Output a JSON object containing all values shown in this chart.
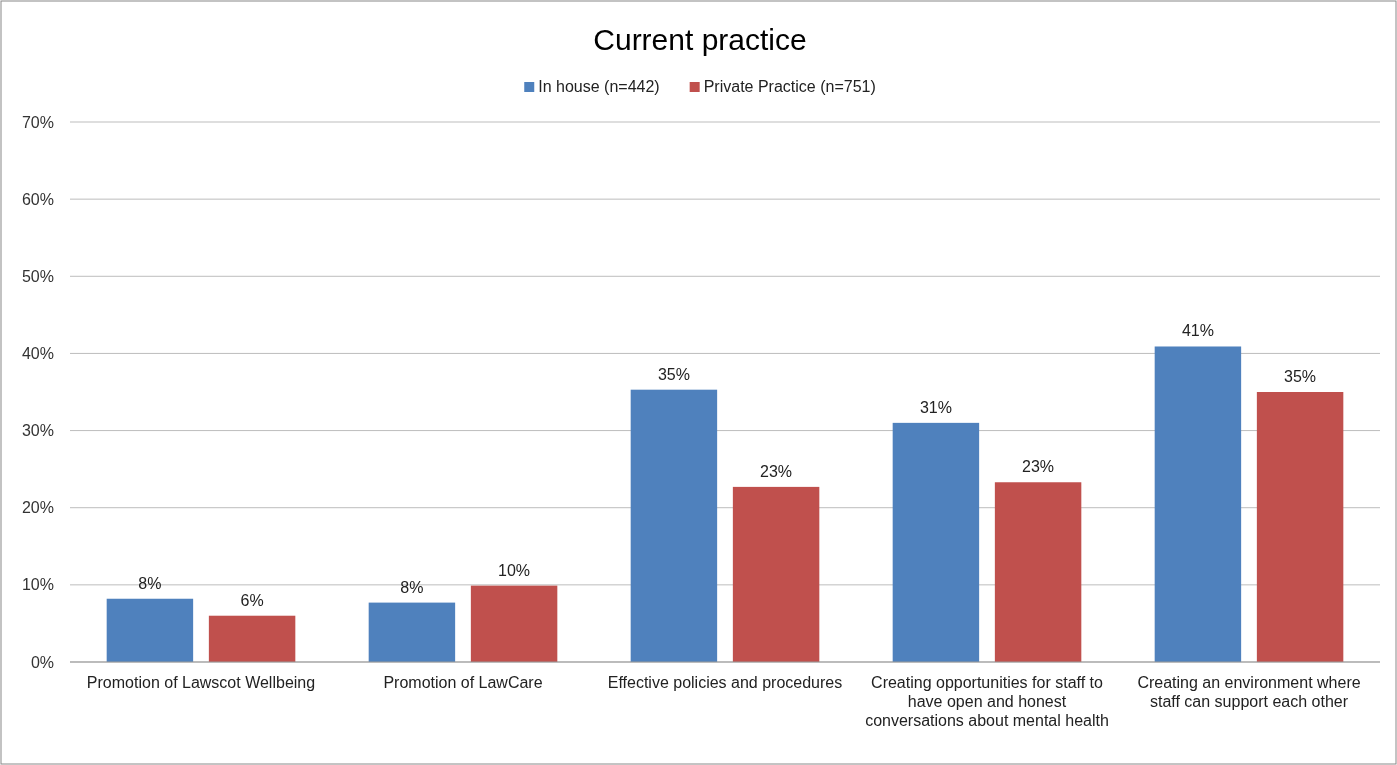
{
  "chart_data": {
    "type": "bar",
    "title": "Current practice",
    "categories": [
      "Promotion of Lawscot Wellbeing",
      "Promotion of LawCare",
      "Effective policies and procedures",
      "Creating opportunities for staff to have open and honest conversations about mental health",
      "Creating an environment where staff can support each other"
    ],
    "series": [
      {
        "name": "In house (n=442)",
        "color": "#4f81bd",
        "values": [
          8.2,
          7.7,
          35.3,
          31.0,
          40.9
        ],
        "value_labels": [
          "8%",
          "8%",
          "35%",
          "31%",
          "41%"
        ]
      },
      {
        "name": "Private Practice (n=751)",
        "color": "#c0504d",
        "values": [
          6.0,
          9.9,
          22.7,
          23.3,
          35.0
        ],
        "value_labels": [
          "6%",
          "10%",
          "23%",
          "23%",
          "35%"
        ]
      }
    ],
    "ylim": [
      0,
      70
    ],
    "yticks": [
      {
        "value": 0,
        "label": "0%"
      },
      {
        "value": 10,
        "label": "10%"
      },
      {
        "value": 20,
        "label": "20%"
      },
      {
        "value": 30,
        "label": "30%"
      },
      {
        "value": 40,
        "label": "40%"
      },
      {
        "value": 50,
        "label": "50%"
      },
      {
        "value": 60,
        "label": "60%"
      },
      {
        "value": 70,
        "label": "70%"
      }
    ],
    "grid": "y",
    "legend": "top"
  }
}
